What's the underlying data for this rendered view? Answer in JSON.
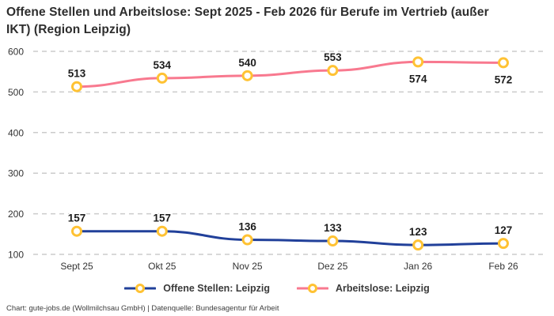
{
  "title": "Offene Stellen und Arbeitslose: Sept 2025 - Feb 2026 für Berufe im Vertrieb (außer IKT) (Region Leipzig)",
  "footer": "Chart: gute-jobs.de (Wollmilchsau GmbH) | Datenquelle: Bundesagentur für Arbeit",
  "colors": {
    "marker_ring": "#FFC233",
    "marker_fill": "#FFFFFF",
    "grid": "#CBCBCB",
    "axis_text": "#333333",
    "point_label_text": "#1D1D1D",
    "offene_stellen_line": "#21409A",
    "arbeitslose_line": "#F8798F"
  },
  "chart_data": {
    "type": "line",
    "categories": [
      "Sept 25",
      "Okt 25",
      "Nov 25",
      "Dez 25",
      "Jan 26",
      "Feb 26"
    ],
    "series": [
      {
        "name": "Offene Stellen: Leipzig",
        "color": "#21409A",
        "values": [
          157,
          157,
          136,
          133,
          123,
          127
        ],
        "label_positions": [
          "above",
          "above",
          "above",
          "above",
          "above",
          "above"
        ]
      },
      {
        "name": "Arbeitslose: Leipzig",
        "color": "#F8798F",
        "values": [
          513,
          534,
          540,
          553,
          574,
          572
        ],
        "label_positions": [
          "above",
          "above",
          "above",
          "above",
          "below",
          "below"
        ]
      }
    ],
    "ylim": [
      100,
      600
    ],
    "yticks": [
      100,
      200,
      300,
      400,
      500,
      600
    ],
    "grid": "horizontal-dashed",
    "legend_position": "bottom",
    "point_labels": true
  }
}
